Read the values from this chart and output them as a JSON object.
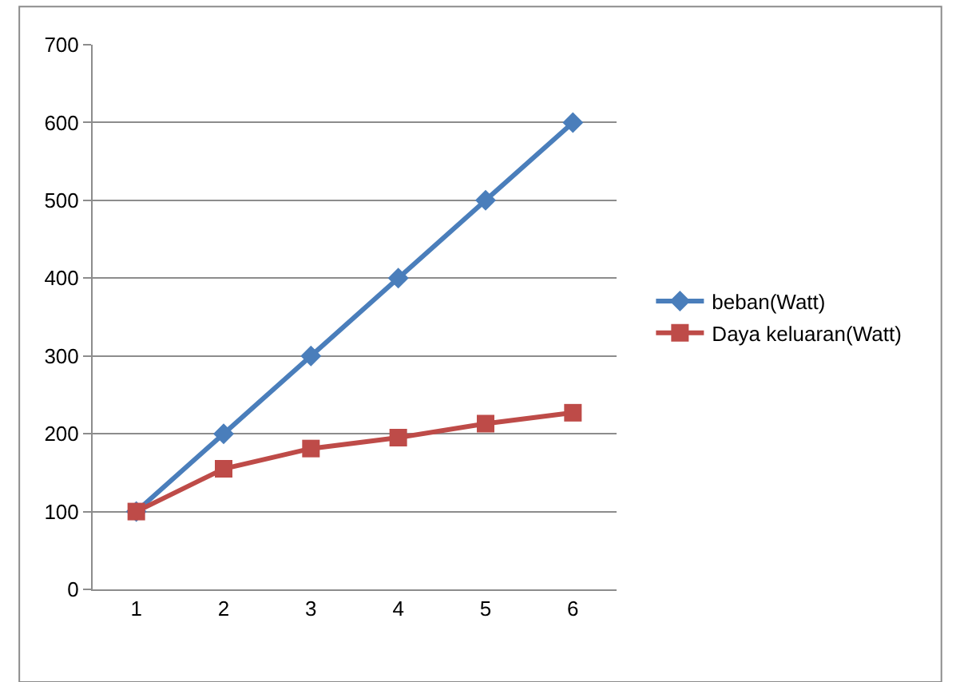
{
  "chart_data": {
    "type": "line",
    "categories": [
      "1",
      "2",
      "3",
      "4",
      "5",
      "6"
    ],
    "series": [
      {
        "name": "beban(Watt)",
        "color": "#4a7ebb",
        "marker": "diamond",
        "values": [
          100,
          200,
          300,
          400,
          500,
          600
        ]
      },
      {
        "name": "Daya keluaran(Watt)",
        "color": "#be4b48",
        "marker": "square",
        "values": [
          100,
          155,
          181,
          195,
          213,
          227
        ]
      }
    ],
    "ylim": [
      0,
      700
    ],
    "yticks": [
      0,
      100,
      200,
      300,
      400,
      500,
      600,
      700
    ],
    "grid": "y",
    "legend": "right"
  }
}
